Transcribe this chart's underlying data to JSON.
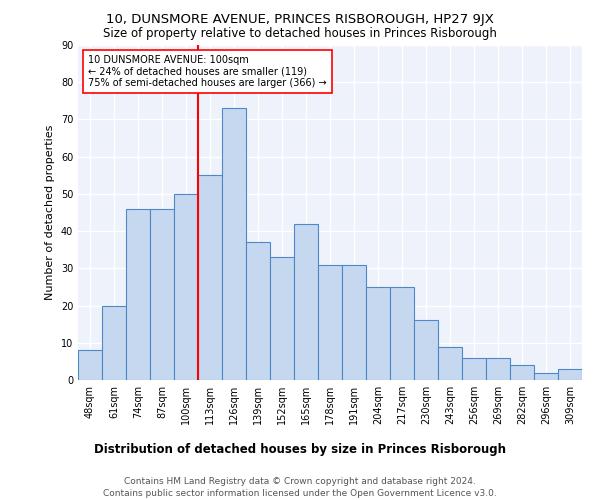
{
  "title": "10, DUNSMORE AVENUE, PRINCES RISBOROUGH, HP27 9JX",
  "subtitle": "Size of property relative to detached houses in Princes Risborough",
  "xlabel": "Distribution of detached houses by size in Princes Risborough",
  "ylabel": "Number of detached properties",
  "categories": [
    "48sqm",
    "61sqm",
    "74sqm",
    "87sqm",
    "100sqm",
    "113sqm",
    "126sqm",
    "139sqm",
    "152sqm",
    "165sqm",
    "178sqm",
    "191sqm",
    "204sqm",
    "217sqm",
    "230sqm",
    "243sqm",
    "256sqm",
    "269sqm",
    "282sqm",
    "296sqm",
    "309sqm"
  ],
  "values": [
    8,
    20,
    46,
    46,
    50,
    55,
    73,
    37,
    33,
    42,
    31,
    31,
    25,
    25,
    16,
    9,
    6,
    6,
    4,
    2,
    3
  ],
  "bar_color": "#c5d8f0",
  "bar_edge_color": "#4f88c6",
  "vline_index": 4,
  "vline_color": "red",
  "annotation_title": "10 DUNSMORE AVENUE: 100sqm",
  "annotation_line1": "← 24% of detached houses are smaller (119)",
  "annotation_line2": "75% of semi-detached houses are larger (366) →",
  "annotation_box_color": "white",
  "annotation_box_edge_color": "red",
  "ylim": [
    0,
    90
  ],
  "yticks": [
    0,
    10,
    20,
    30,
    40,
    50,
    60,
    70,
    80,
    90
  ],
  "footer_line1": "Contains HM Land Registry data © Crown copyright and database right 2024.",
  "footer_line2": "Contains public sector information licensed under the Open Government Licence v3.0.",
  "bg_color": "#eef2fb",
  "grid_color": "white",
  "title_fontsize": 9.5,
  "subtitle_fontsize": 8.5,
  "ylabel_fontsize": 8,
  "xlabel_fontsize": 8.5,
  "tick_fontsize": 7,
  "annotation_fontsize": 7,
  "footer_fontsize": 6.5
}
